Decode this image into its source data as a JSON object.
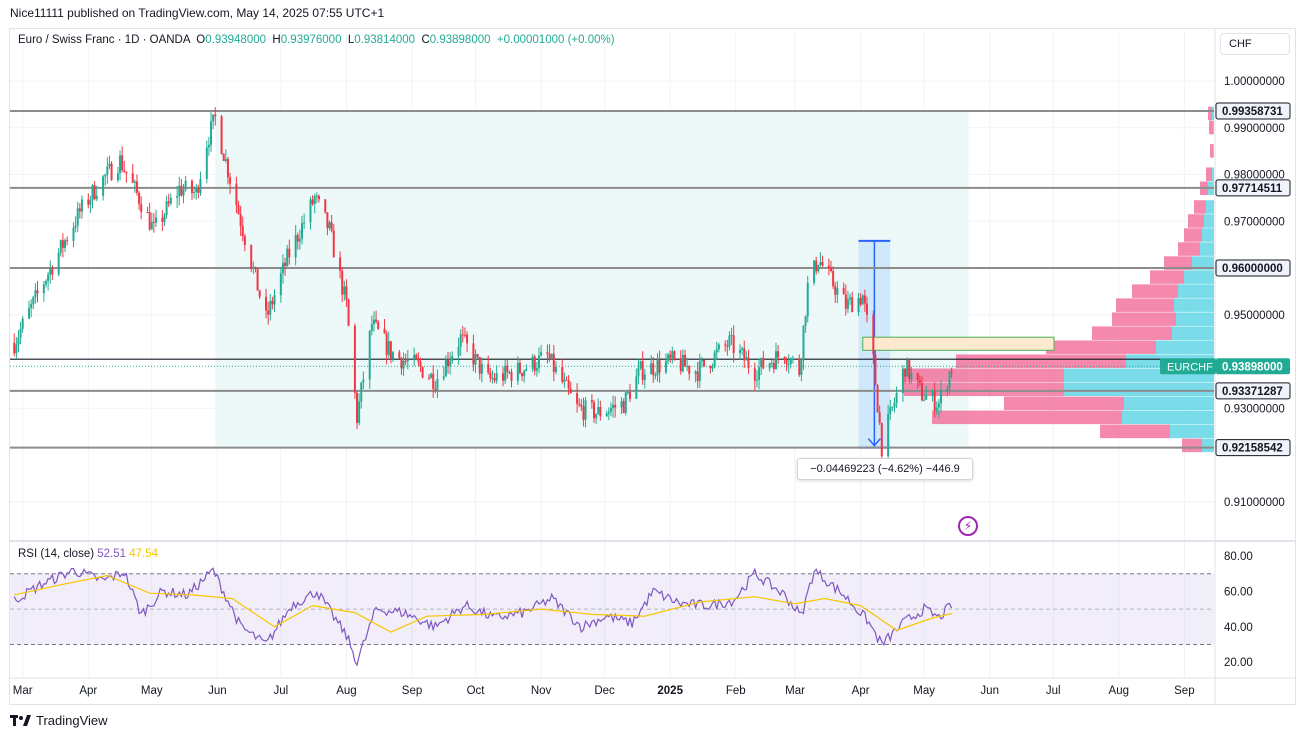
{
  "header": {
    "published_text": "Nice11111 published on TradingView.com, May 14, 2025 07:55 UTC+1"
  },
  "legend": {
    "symbol": "Euro / Swiss Franc · 1D · OANDA",
    "o_label": "O",
    "o_value": "0.93948000",
    "h_label": "H",
    "h_value": "0.93976000",
    "l_label": "L",
    "l_value": "0.93814000",
    "c_label": "C",
    "c_value": "0.93898000",
    "change": "+0.00001000 (+0.00%)"
  },
  "currency_button": "CHF",
  "rsi_legend": {
    "label": "RSI (14, close)",
    "rsi_value": "52.51",
    "ma_value": "47.54"
  },
  "measure_tooltip": "−0.04469223 (−4.62%) −446.9",
  "brand": "TradingView",
  "colors": {
    "up": "#22ab94",
    "down": "#f23645",
    "rsi": "#7e57c2",
    "rsi_ma": "#f7c600",
    "level_line": "#8c8c8c",
    "profile_pink": "#f06292",
    "profile_cyan": "#4dd0e1"
  },
  "chart_data": [
    {
      "type": "candlestick",
      "title": "Euro / Swiss Franc · 1D · OANDA",
      "ylim": [
        0.9,
        1.005
      ],
      "y_ticks": [
        "1.00000000",
        "0.99000000",
        "0.98000000",
        "0.97000000",
        "0.96000000",
        "0.95000000",
        "0.93000000",
        "0.91000000"
      ],
      "x_ticks": [
        "Mar",
        "Apr",
        "May",
        "Jun",
        "Jul",
        "Aug",
        "Sep",
        "Oct",
        "Nov",
        "Dec",
        "2025",
        "Feb",
        "Mar",
        "Apr",
        "May",
        "Jun",
        "Jul",
        "Aug",
        "Sep"
      ],
      "close_path": [
        [
          "2024-02-26",
          0.944
        ],
        [
          "2024-03-12",
          0.958
        ],
        [
          "2024-03-28",
          0.972
        ],
        [
          "2024-04-06",
          0.978
        ],
        [
          "2024-04-16",
          0.983
        ],
        [
          "2024-04-26",
          0.974
        ],
        [
          "2024-05-02",
          0.968
        ],
        [
          "2024-05-14",
          0.977
        ],
        [
          "2024-05-22",
          0.976
        ],
        [
          "2024-05-27",
          0.987
        ],
        [
          "2024-05-31",
          0.992
        ],
        [
          "2024-06-06",
          0.981
        ],
        [
          "2024-06-16",
          0.963
        ],
        [
          "2024-06-24",
          0.949
        ],
        [
          "2024-07-04",
          0.962
        ],
        [
          "2024-07-17",
          0.975
        ],
        [
          "2024-07-24",
          0.968
        ],
        [
          "2024-08-01",
          0.952
        ],
        [
          "2024-08-06",
          0.928
        ],
        [
          "2024-08-13",
          0.948
        ],
        [
          "2024-08-22",
          0.942
        ],
        [
          "2024-08-29",
          0.94
        ],
        [
          "2024-09-04",
          0.939
        ],
        [
          "2024-09-12",
          0.936
        ],
        [
          "2024-09-24",
          0.945
        ],
        [
          "2024-10-07",
          0.936
        ],
        [
          "2024-10-21",
          0.938
        ],
        [
          "2024-11-04",
          0.941
        ],
        [
          "2024-11-18",
          0.93
        ],
        [
          "2024-11-28",
          0.929
        ],
        [
          "2024-12-10",
          0.931
        ],
        [
          "2024-12-18",
          0.938
        ],
        [
          "2025-01-02",
          0.94
        ],
        [
          "2025-01-14",
          0.938
        ],
        [
          "2025-01-29",
          0.944
        ],
        [
          "2025-02-10",
          0.938
        ],
        [
          "2025-02-24",
          0.942
        ],
        [
          "2025-03-03",
          0.938
        ],
        [
          "2025-03-07",
          0.956
        ],
        [
          "2025-03-12",
          0.962
        ],
        [
          "2025-03-25",
          0.952
        ],
        [
          "2025-04-02",
          0.954
        ],
        [
          "2025-04-07",
          0.94
        ],
        [
          "2025-04-11",
          0.922
        ],
        [
          "2025-04-22",
          0.939
        ],
        [
          "2025-04-30",
          0.933
        ],
        [
          "2025-05-08",
          0.931
        ],
        [
          "2025-05-14",
          0.93898
        ]
      ],
      "horizontal_levels": [
        {
          "label": "0.99358731",
          "value": 0.99358731
        },
        {
          "label": "0.97714511",
          "value": 0.97714511
        },
        {
          "label": "0.96000000",
          "value": 0.96
        },
        {
          "label": "0.93371287",
          "value": 0.93371287
        },
        {
          "label": "0.92158542",
          "value": 0.92158542
        }
      ],
      "current_price": {
        "label": "EURCHF",
        "value_label": "0.93898000",
        "value": 0.93898
      },
      "measure": {
        "from": 0.9658,
        "to": 0.92158542,
        "start_date": "2025-03-31",
        "end_date": "2025-04-15"
      }
    },
    {
      "type": "line",
      "title": "RSI (14, close)",
      "ylim": [
        15,
        85
      ],
      "y_ticks": [
        "80.00",
        "60.00",
        "40.00",
        "20.00"
      ],
      "band": [
        30,
        70
      ],
      "series": [
        {
          "name": "RSI",
          "values": [
            [
              "2024-02-26",
              55
            ],
            [
              "2024-03-10",
              64
            ],
            [
              "2024-03-25",
              72
            ],
            [
              "2024-04-08",
              66
            ],
            [
              "2024-04-18",
              71
            ],
            [
              "2024-04-26",
              47
            ],
            [
              "2024-05-06",
              60
            ],
            [
              "2024-05-18",
              58
            ],
            [
              "2024-05-30",
              72
            ],
            [
              "2024-06-12",
              40
            ],
            [
              "2024-06-24",
              30
            ],
            [
              "2024-07-06",
              52
            ],
            [
              "2024-07-18",
              60
            ],
            [
              "2024-08-01",
              35
            ],
            [
              "2024-08-06",
              20
            ],
            [
              "2024-08-15",
              50
            ],
            [
              "2024-08-28",
              48
            ],
            [
              "2024-09-12",
              40
            ],
            [
              "2024-09-26",
              52
            ],
            [
              "2024-10-10",
              45
            ],
            [
              "2024-10-24",
              48
            ],
            [
              "2024-11-06",
              56
            ],
            [
              "2024-11-20",
              40
            ],
            [
              "2024-12-02",
              46
            ],
            [
              "2024-12-14",
              42
            ],
            [
              "2024-12-24",
              60
            ],
            [
              "2025-01-06",
              53
            ],
            [
              "2025-01-20",
              52
            ],
            [
              "2025-01-31",
              55
            ],
            [
              "2025-02-10",
              70
            ],
            [
              "2025-02-24",
              58
            ],
            [
              "2025-03-04",
              46
            ],
            [
              "2025-03-10",
              72
            ],
            [
              "2025-03-24",
              58
            ],
            [
              "2025-04-04",
              44
            ],
            [
              "2025-04-11",
              30
            ],
            [
              "2025-04-22",
              43
            ],
            [
              "2025-05-01",
              50
            ],
            [
              "2025-05-08",
              45
            ],
            [
              "2025-05-14",
              52.51
            ]
          ]
        },
        {
          "name": "RSI-based MA",
          "values": [
            [
              "2024-02-26",
              58
            ],
            [
              "2024-03-20",
              64
            ],
            [
              "2024-04-10",
              69
            ],
            [
              "2024-04-30",
              59
            ],
            [
              "2024-05-20",
              58
            ],
            [
              "2024-06-08",
              56
            ],
            [
              "2024-06-28",
              40
            ],
            [
              "2024-07-16",
              52
            ],
            [
              "2024-08-05",
              48
            ],
            [
              "2024-08-22",
              37
            ],
            [
              "2024-09-08",
              46
            ],
            [
              "2024-10-05",
              47
            ],
            [
              "2024-11-01",
              50
            ],
            [
              "2024-11-25",
              47
            ],
            [
              "2024-12-20",
              46
            ],
            [
              "2025-01-15",
              54
            ],
            [
              "2025-02-10",
              57
            ],
            [
              "2025-03-01",
              53
            ],
            [
              "2025-03-15",
              56
            ],
            [
              "2025-04-01",
              52
            ],
            [
              "2025-04-18",
              38
            ],
            [
              "2025-05-05",
              45
            ],
            [
              "2025-05-14",
              47.54
            ]
          ]
        }
      ]
    }
  ]
}
